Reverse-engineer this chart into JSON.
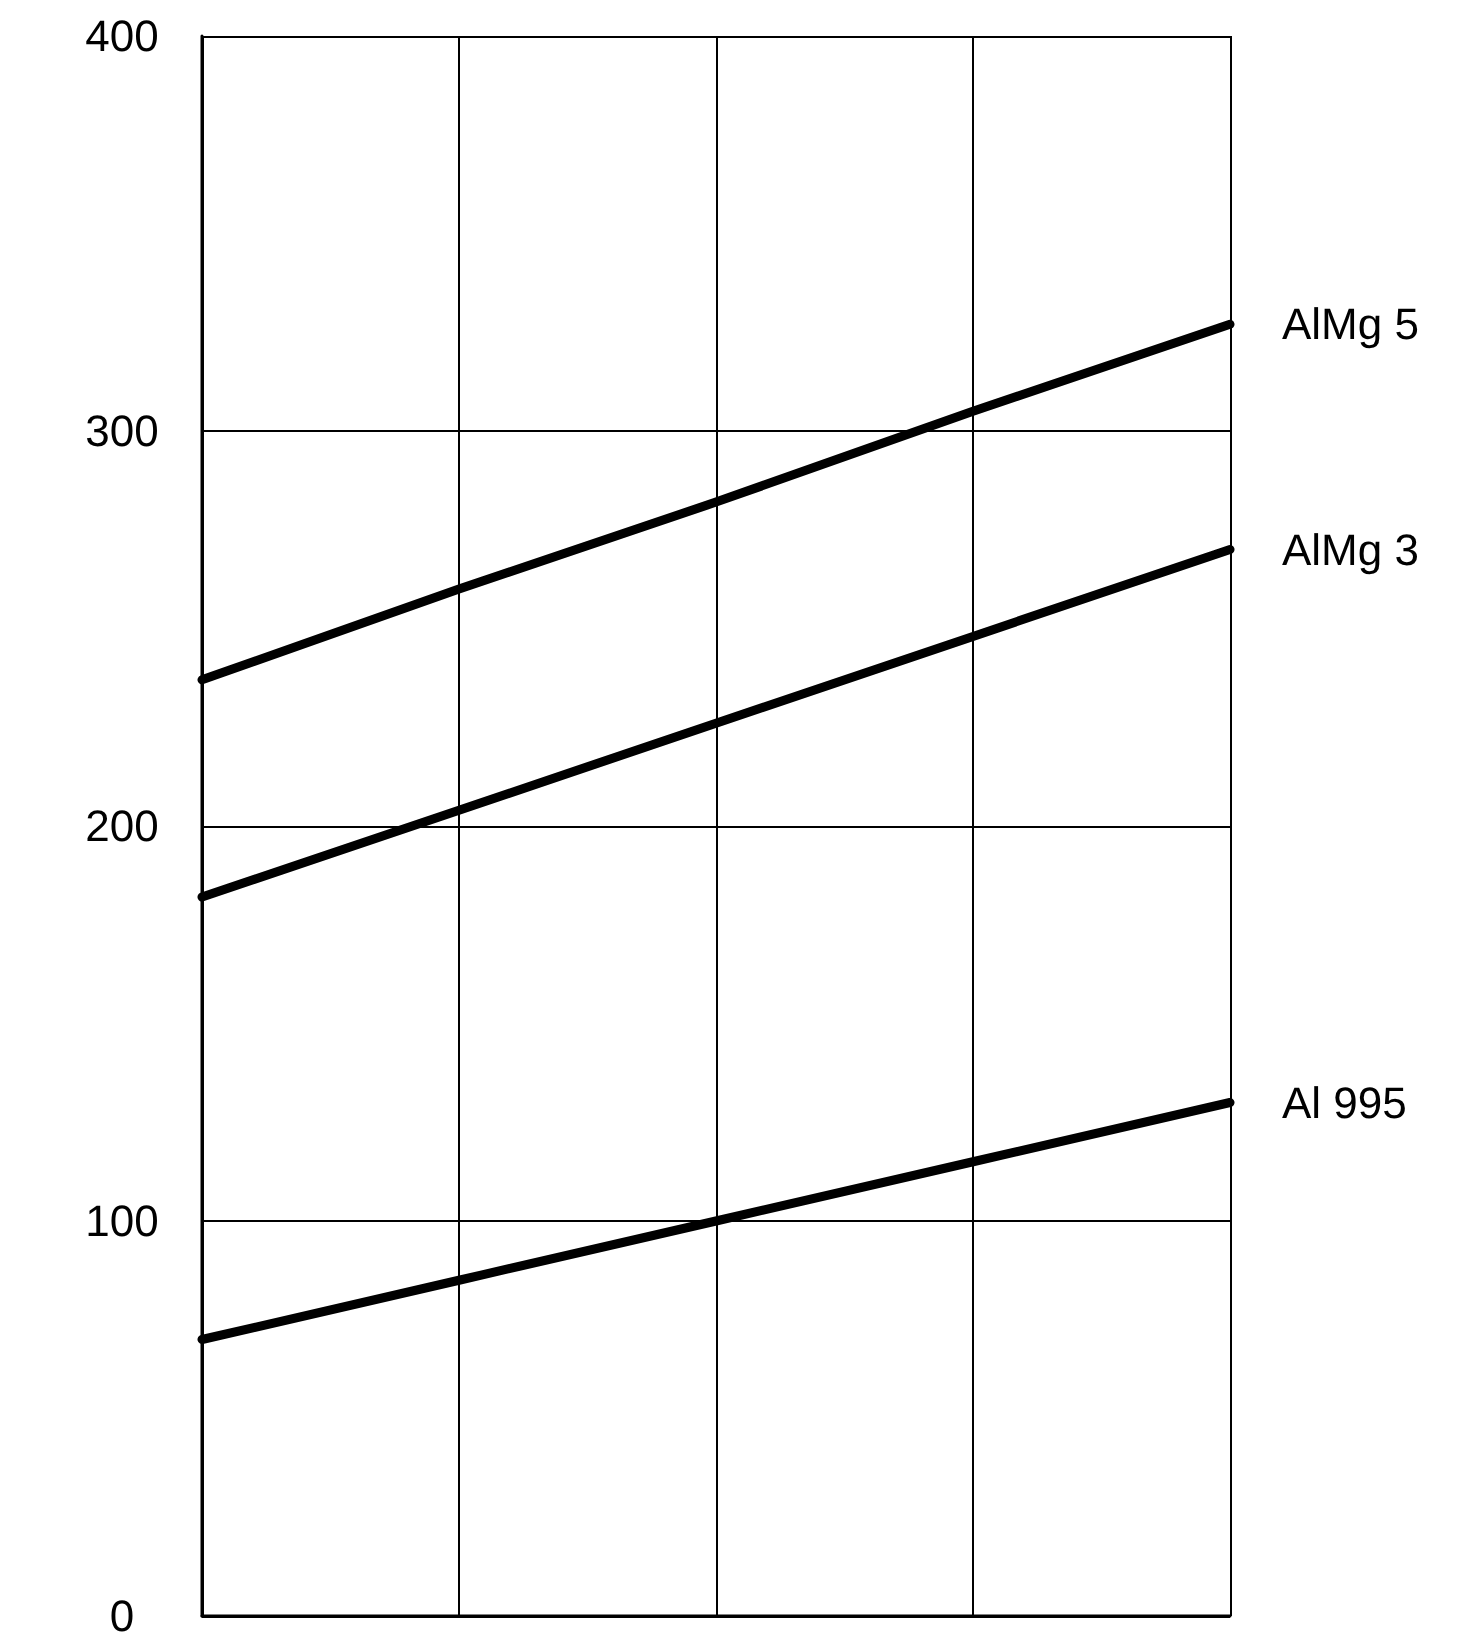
{
  "chart_data": {
    "type": "line",
    "categories": [
      null,
      null,
      null,
      null,
      null
    ],
    "series": [
      {
        "name": "AlMg 5",
        "color": "#000000",
        "values": [
          237,
          260,
          282,
          305,
          327
        ]
      },
      {
        "name": "AlMg 3",
        "color": "#000000",
        "values": [
          182,
          204,
          226,
          248,
          270
        ]
      },
      {
        "name": "Al 995",
        "color": "#000000",
        "values": [
          70,
          85,
          100,
          115,
          130
        ]
      }
    ],
    "ylim": [
      0,
      400
    ],
    "yticks": [
      0,
      100,
      200,
      300,
      400
    ],
    "grid": true,
    "tick_labels": "y",
    "marker": "none",
    "line_style": "solid",
    "legend": false
  }
}
